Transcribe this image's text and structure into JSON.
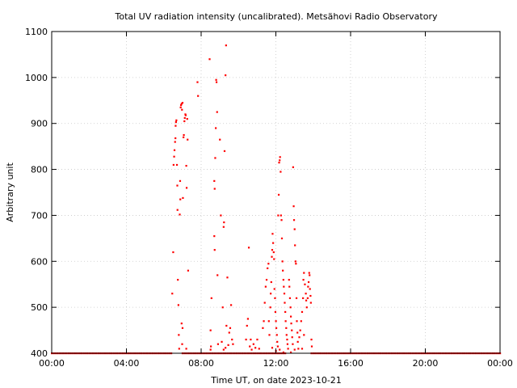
{
  "chart_data": {
    "type": "scatter",
    "title": "Total UV radiation intensity (uncalibrated). Metsähovi Radio Observatory",
    "xlabel": "Time UT, on date 2023-10-21",
    "ylabel": "Arbitrary unit",
    "xlim": [
      0,
      24
    ],
    "ylim": [
      400,
      1100
    ],
    "grid": true,
    "legend": "none",
    "color": "#ff0000",
    "x_ticks": [
      {
        "value": 0,
        "label": "00:00"
      },
      {
        "value": 4,
        "label": "04:00"
      },
      {
        "value": 8,
        "label": "08:00"
      },
      {
        "value": 12,
        "label": "12:00"
      },
      {
        "value": 16,
        "label": "16:00"
      },
      {
        "value": 20,
        "label": "20:00"
      },
      {
        "value": 24,
        "label": "00:00"
      }
    ],
    "y_ticks": [
      {
        "value": 400,
        "label": "400"
      },
      {
        "value": 500,
        "label": "500"
      },
      {
        "value": 600,
        "label": "600"
      },
      {
        "value": 700,
        "label": "700"
      },
      {
        "value": 800,
        "label": "800"
      },
      {
        "value": 900,
        "label": "900"
      },
      {
        "value": 1000,
        "label": "1000"
      },
      {
        "value": 1100,
        "label": "1100"
      }
    ],
    "baseline": {
      "y": 400,
      "x_ranges": [
        [
          0.0,
          6.4
        ],
        [
          7.0,
          12.5
        ],
        [
          13.9,
          24.0
        ]
      ],
      "step": 0.1
    },
    "points": [
      [
        6.45,
        530
      ],
      [
        6.5,
        620
      ],
      [
        6.52,
        810
      ],
      [
        6.55,
        828
      ],
      [
        6.57,
        842
      ],
      [
        6.6,
        860
      ],
      [
        6.62,
        868
      ],
      [
        6.63,
        895
      ],
      [
        6.65,
        903
      ],
      [
        6.67,
        907
      ],
      [
        6.7,
        810
      ],
      [
        6.72,
        765
      ],
      [
        6.73,
        712
      ],
      [
        6.75,
        560
      ],
      [
        6.78,
        505
      ],
      [
        6.8,
        440
      ],
      [
        6.82,
        410
      ],
      [
        6.85,
        702
      ],
      [
        6.87,
        775
      ],
      [
        6.88,
        735
      ],
      [
        6.9,
        935
      ],
      [
        6.92,
        940
      ],
      [
        6.95,
        943
      ],
      [
        6.97,
        930
      ],
      [
        7.0,
        945
      ],
      [
        7.02,
        738
      ],
      [
        7.05,
        870
      ],
      [
        7.07,
        875
      ],
      [
        7.1,
        905
      ],
      [
        7.12,
        912
      ],
      [
        7.15,
        920
      ],
      [
        7.17,
        918
      ],
      [
        7.2,
        808
      ],
      [
        7.22,
        760
      ],
      [
        7.25,
        910
      ],
      [
        7.27,
        865
      ],
      [
        7.3,
        580
      ],
      [
        6.95,
        465
      ],
      [
        7.0,
        455
      ],
      [
        6.98,
        420
      ],
      [
        7.2,
        410
      ],
      [
        7.8,
        990
      ],
      [
        7.83,
        960
      ],
      [
        8.45,
        1040
      ],
      [
        8.5,
        450
      ],
      [
        8.55,
        520
      ],
      [
        8.5,
        408
      ],
      [
        8.52,
        415
      ],
      [
        8.7,
        775
      ],
      [
        8.72,
        758
      ],
      [
        8.75,
        825
      ],
      [
        8.78,
        890
      ],
      [
        8.8,
        995
      ],
      [
        8.82,
        990
      ],
      [
        8.85,
        925
      ],
      [
        8.87,
        570
      ],
      [
        8.7,
        655
      ],
      [
        8.72,
        625
      ],
      [
        8.9,
        420
      ],
      [
        9.0,
        865
      ],
      [
        9.05,
        700
      ],
      [
        9.1,
        425
      ],
      [
        9.15,
        500
      ],
      [
        9.2,
        675
      ],
      [
        9.22,
        685
      ],
      [
        9.25,
        840
      ],
      [
        9.3,
        1005
      ],
      [
        9.33,
        1070
      ],
      [
        9.35,
        460
      ],
      [
        9.4,
        565
      ],
      [
        9.45,
        418
      ],
      [
        9.5,
        445
      ],
      [
        9.55,
        455
      ],
      [
        9.6,
        505
      ],
      [
        9.65,
        430
      ],
      [
        9.7,
        420
      ],
      [
        9.2,
        408
      ],
      [
        9.3,
        412
      ],
      [
        10.4,
        430
      ],
      [
        10.45,
        460
      ],
      [
        10.5,
        475
      ],
      [
        10.55,
        630
      ],
      [
        10.6,
        415
      ],
      [
        10.65,
        430
      ],
      [
        10.7,
        408
      ],
      [
        10.8,
        420
      ],
      [
        10.9,
        412
      ],
      [
        11.0,
        430
      ],
      [
        11.1,
        410
      ],
      [
        11.3,
        455
      ],
      [
        11.35,
        470
      ],
      [
        11.4,
        510
      ],
      [
        11.45,
        545
      ],
      [
        11.5,
        560
      ],
      [
        11.55,
        585
      ],
      [
        11.6,
        595
      ],
      [
        11.62,
        470
      ],
      [
        11.65,
        440
      ],
      [
        11.7,
        500
      ],
      [
        11.72,
        530
      ],
      [
        11.75,
        555
      ],
      [
        11.78,
        610
      ],
      [
        11.8,
        625
      ],
      [
        11.82,
        660
      ],
      [
        11.85,
        640
      ],
      [
        11.88,
        620
      ],
      [
        11.9,
        605
      ],
      [
        11.92,
        540
      ],
      [
        11.95,
        520
      ],
      [
        11.97,
        490
      ],
      [
        12.0,
        470
      ],
      [
        12.02,
        455
      ],
      [
        12.05,
        440
      ],
      [
        12.07,
        425
      ],
      [
        12.1,
        415
      ],
      [
        12.12,
        700
      ],
      [
        12.15,
        745
      ],
      [
        12.17,
        815
      ],
      [
        12.2,
        820
      ],
      [
        12.22,
        827
      ],
      [
        12.25,
        795
      ],
      [
        12.27,
        700
      ],
      [
        12.3,
        690
      ],
      [
        12.32,
        650
      ],
      [
        12.35,
        600
      ],
      [
        12.37,
        580
      ],
      [
        12.4,
        560
      ],
      [
        12.42,
        545
      ],
      [
        12.45,
        530
      ],
      [
        12.47,
        510
      ],
      [
        12.5,
        490
      ],
      [
        12.52,
        470
      ],
      [
        12.55,
        455
      ],
      [
        12.57,
        440
      ],
      [
        12.6,
        430
      ],
      [
        12.62,
        420
      ],
      [
        12.65,
        410
      ],
      [
        12.0,
        405
      ],
      [
        12.2,
        408
      ],
      [
        12.4,
        402
      ],
      [
        11.8,
        412
      ],
      [
        12.7,
        560
      ],
      [
        12.72,
        545
      ],
      [
        12.75,
        520
      ],
      [
        12.78,
        500
      ],
      [
        12.8,
        480
      ],
      [
        12.82,
        465
      ],
      [
        12.85,
        450
      ],
      [
        12.87,
        435
      ],
      [
        12.9,
        420
      ],
      [
        12.92,
        805
      ],
      [
        12.95,
        720
      ],
      [
        12.97,
        690
      ],
      [
        13.0,
        670
      ],
      [
        13.02,
        635
      ],
      [
        13.05,
        600
      ],
      [
        13.07,
        595
      ],
      [
        13.1,
        520
      ],
      [
        13.12,
        470
      ],
      [
        13.15,
        445
      ],
      [
        13.17,
        425
      ],
      [
        13.2,
        410
      ],
      [
        13.25,
        435
      ],
      [
        13.3,
        450
      ],
      [
        13.35,
        470
      ],
      [
        13.4,
        490
      ],
      [
        13.45,
        520
      ],
      [
        13.47,
        560
      ],
      [
        13.5,
        575
      ],
      [
        13.55,
        550
      ],
      [
        13.6,
        530
      ],
      [
        13.62,
        515
      ],
      [
        13.65,
        500
      ],
      [
        13.7,
        520
      ],
      [
        13.72,
        545
      ],
      [
        13.75,
        555
      ],
      [
        13.78,
        575
      ],
      [
        13.8,
        570
      ],
      [
        13.82,
        540
      ],
      [
        13.85,
        525
      ],
      [
        13.87,
        510
      ],
      [
        13.9,
        430
      ],
      [
        13.92,
        415
      ],
      [
        13.5,
        440
      ],
      [
        13.4,
        410
      ],
      [
        13.0,
        408
      ],
      [
        12.8,
        402
      ]
    ]
  }
}
